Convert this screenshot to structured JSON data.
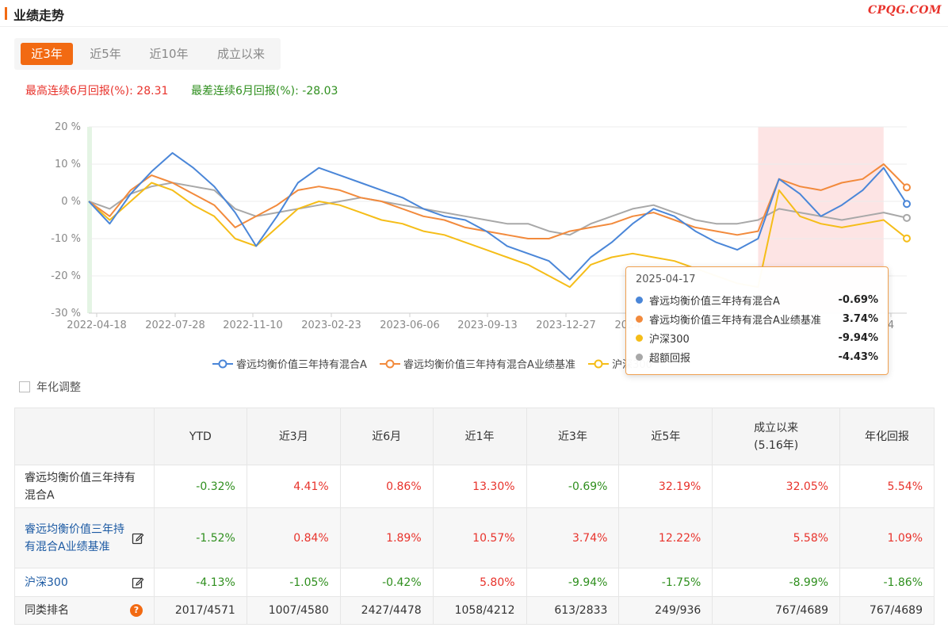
{
  "header": {
    "title": "业绩走势",
    "brand": "CPQG.COM"
  },
  "tabs": [
    {
      "label": "近3年",
      "active": true
    },
    {
      "label": "近5年",
      "active": false
    },
    {
      "label": "近10年",
      "active": false
    },
    {
      "label": "成立以来",
      "active": false
    }
  ],
  "streaks": {
    "best": "最高连续6月回报(%): 28.31",
    "worst": "最差连续6月回报(%): -28.03"
  },
  "colors": {
    "accent": "#f26a12",
    "fund": "#4a86d8",
    "benchmark": "#f28a3c",
    "hs300": "#f5bd18",
    "excess": "#a8a8a8",
    "up": "#e8332c",
    "down": "#2f8f1e"
  },
  "chart_data": {
    "type": "line",
    "x_ticks": [
      "2022-04-18",
      "2022-07-28",
      "2022-11-10",
      "2023-02-23",
      "2023-06-06",
      "2023-09-13",
      "2023-12-27",
      "2024",
      "4"
    ],
    "y_ticks": [
      "20 %",
      "10 %",
      "0 %",
      "-10 %",
      "-20 %",
      "-30 %"
    ],
    "ylim": [
      -30,
      20
    ],
    "x": [
      "2022-04-18",
      "2022-05-16",
      "2022-06-13",
      "2022-07-11",
      "2022-08-08",
      "2022-09-05",
      "2022-10-03",
      "2022-10-31",
      "2022-11-28",
      "2022-12-26",
      "2023-01-23",
      "2023-02-20",
      "2023-03-20",
      "2023-04-17",
      "2023-05-15",
      "2023-06-12",
      "2023-07-10",
      "2023-08-07",
      "2023-09-04",
      "2023-10-02",
      "2023-10-30",
      "2023-11-27",
      "2023-12-25",
      "2024-01-22",
      "2024-02-19",
      "2024-03-18",
      "2024-04-15",
      "2024-05-13",
      "2024-06-10",
      "2024-07-08",
      "2024-08-05",
      "2024-09-02",
      "2024-09-30",
      "2024-10-28",
      "2024-11-25",
      "2024-12-23",
      "2025-01-20",
      "2025-02-17",
      "2025-03-17",
      "2025-04-17"
    ],
    "series": [
      {
        "name": "睿远均衡价值三年持有混合A",
        "color": "#4a86d8",
        "values": [
          0,
          -6,
          2,
          8,
          13,
          9,
          4,
          -3,
          -12,
          -4,
          5,
          9,
          7,
          5,
          3,
          1,
          -2,
          -4,
          -5,
          -8,
          -12,
          -14,
          -16,
          -21,
          -15,
          -11,
          -6,
          -2,
          -4,
          -8,
          -11,
          -13,
          -10,
          6,
          2,
          -4,
          -1,
          3,
          9,
          -0.69
        ]
      },
      {
        "name": "睿远均衡价值三年持有混合A业绩基准",
        "color": "#f28a3c",
        "values": [
          0,
          -4,
          3,
          7,
          5,
          2,
          -1,
          -7,
          -4,
          -1,
          3,
          4,
          3,
          1,
          0,
          -2,
          -4,
          -5,
          -7,
          -8,
          -9,
          -10,
          -10,
          -8,
          -7,
          -6,
          -4,
          -3,
          -5,
          -7,
          -8,
          -9,
          -8,
          6,
          4,
          3,
          5,
          6,
          10,
          3.74
        ]
      },
      {
        "name": "沪深300",
        "color": "#f5bd18",
        "values": [
          0,
          -5,
          0,
          5,
          3,
          -1,
          -4,
          -10,
          -12,
          -7,
          -2,
          0,
          -1,
          -3,
          -5,
          -6,
          -8,
          -9,
          -11,
          -13,
          -15,
          -17,
          -20,
          -23,
          -17,
          -15,
          -14,
          -15,
          -16,
          -18,
          -20,
          -22,
          -23,
          3,
          -4,
          -6,
          -7,
          -6,
          -5,
          -9.94
        ]
      },
      {
        "name": "超额回报",
        "color": "#a8a8a8",
        "values": [
          0,
          -2,
          2,
          4,
          5,
          4,
          3,
          -2,
          -4,
          -3,
          -2,
          -1,
          0,
          1,
          0,
          -1,
          -2,
          -3,
          -4,
          -5,
          -6,
          -6,
          -8,
          -9,
          -6,
          -4,
          -2,
          -1,
          -3,
          -5,
          -6,
          -6,
          -5,
          -2,
          -3,
          -4,
          -5,
          -4,
          -3,
          -4.43
        ]
      }
    ],
    "highlight_range": [
      "2024-09-30",
      "2025-03-17"
    ],
    "grid": true,
    "legend_position": "bottom"
  },
  "tooltip": {
    "date": "2025-04-17",
    "rows": [
      {
        "name": "睿远均衡价值三年持有混合A",
        "value": "-0.69%",
        "color": "#4a86d8"
      },
      {
        "name": "睿远均衡价值三年持有混合A业绩基准",
        "value": "3.74%",
        "color": "#f28a3c"
      },
      {
        "name": "沪深300",
        "value": "-9.94%",
        "color": "#f5bd18"
      },
      {
        "name": "超额回报",
        "value": "-4.43%",
        "color": "#a8a8a8"
      }
    ]
  },
  "legend": {
    "items": [
      {
        "label": "睿远均衡价值三年持有混合A",
        "color": "#4a86d8"
      },
      {
        "label": "睿远均衡价值三年持有混合A业绩基准",
        "color": "#f28a3c"
      },
      {
        "label": "沪深300",
        "color": "#f5bd18"
      }
    ]
  },
  "annualize": {
    "label": "年化调整"
  },
  "table": {
    "headers": [
      "YTD",
      "近3月",
      "近6月",
      "近1年",
      "近3年",
      "近5年",
      "成立以来",
      "(5.16年)",
      "年化回报"
    ],
    "rows": [
      {
        "name": "睿远均衡价值三年持有混合A",
        "cells": [
          "-0.32%",
          "4.41%",
          "0.86%",
          "13.30%",
          "-0.69%",
          "32.19%",
          "32.05%",
          "5.54%"
        ]
      },
      {
        "name": "睿远均衡价值三年持有混合A业绩基准",
        "cells": [
          "-1.52%",
          "0.84%",
          "1.89%",
          "10.57%",
          "3.74%",
          "12.22%",
          "5.58%",
          "1.09%"
        ]
      },
      {
        "name": "沪深300",
        "cells": [
          "-4.13%",
          "-1.05%",
          "-0.42%",
          "5.80%",
          "-9.94%",
          "-1.75%",
          "-8.99%",
          "-1.86%"
        ]
      },
      {
        "name": "同类排名",
        "cells": [
          "2017/4571",
          "1007/4580",
          "2427/4478",
          "1058/4212",
          "613/2833",
          "249/936",
          "767/4689",
          "767/4689"
        ]
      }
    ]
  }
}
